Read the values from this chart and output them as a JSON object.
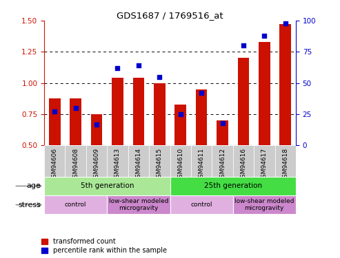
{
  "title": "GDS1687 / 1769516_at",
  "samples": [
    "GSM94606",
    "GSM94608",
    "GSM94609",
    "GSM94613",
    "GSM94614",
    "GSM94615",
    "GSM94610",
    "GSM94611",
    "GSM94612",
    "GSM94616",
    "GSM94617",
    "GSM94618"
  ],
  "red_values": [
    0.88,
    0.88,
    0.75,
    1.04,
    1.04,
    1.0,
    0.83,
    0.95,
    0.7,
    1.2,
    1.33,
    1.47
  ],
  "blue_values": [
    27,
    30,
    17,
    62,
    64,
    55,
    25,
    42,
    18,
    80,
    88,
    98
  ],
  "ylim_left": [
    0.5,
    1.5
  ],
  "ylim_right": [
    0,
    100
  ],
  "yticks_left": [
    0.5,
    0.75,
    1.0,
    1.25,
    1.5
  ],
  "yticks_right": [
    0,
    25,
    50,
    75,
    100
  ],
  "red_color": "#cc1100",
  "blue_color": "#0000cc",
  "bar_bottom": 0.5,
  "age_groups": [
    {
      "label": "5th generation",
      "start": 0,
      "end": 6,
      "color": "#aae898"
    },
    {
      "label": "25th generation",
      "start": 6,
      "end": 12,
      "color": "#44dd44"
    }
  ],
  "stress_groups": [
    {
      "label": "control",
      "start": 0,
      "end": 3,
      "color": "#e0b0e0"
    },
    {
      "label": "low-shear modeled\nmicrogravity",
      "start": 3,
      "end": 6,
      "color": "#cc88cc"
    },
    {
      "label": "control",
      "start": 6,
      "end": 9,
      "color": "#e0b0e0"
    },
    {
      "label": "low-shear modeled\nmicrogravity",
      "start": 9,
      "end": 12,
      "color": "#cc88cc"
    }
  ],
  "legend_red": "transformed count",
  "legend_blue": "percentile rank within the sample",
  "xlabel_age": "age",
  "xlabel_stress": "stress",
  "grid_yticks": [
    0.75,
    1.0,
    1.25
  ],
  "tick_label_bg": "#cccccc",
  "bar_width": 0.55
}
